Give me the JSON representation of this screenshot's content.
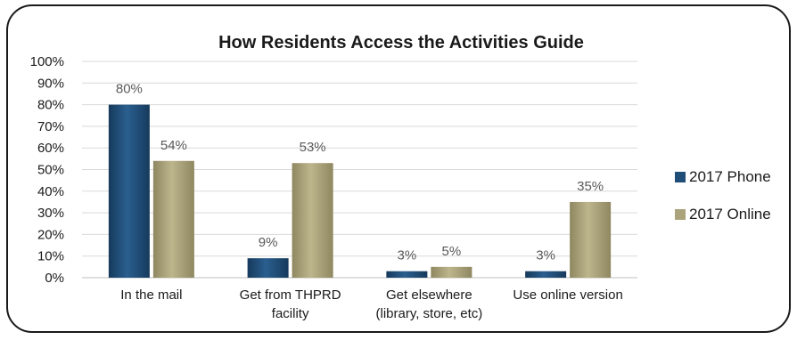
{
  "chart_data": {
    "type": "bar",
    "title": "How Residents Access the Activities Guide",
    "categories": [
      [
        "In the mail"
      ],
      [
        "Get from THPRD",
        "facility"
      ],
      [
        "Get elsewhere",
        "(library, store, etc)"
      ],
      [
        "Use online version"
      ]
    ],
    "series": [
      {
        "name": "2017 Phone",
        "values": [
          80,
          9,
          3,
          3
        ],
        "labels": [
          "80%",
          "9%",
          "3%",
          "3%"
        ],
        "color": "#1f4e79"
      },
      {
        "name": "2017 Online",
        "values": [
          54,
          53,
          5,
          35
        ],
        "labels": [
          "54%",
          "53%",
          "5%",
          "35%"
        ],
        "color": "#aba37b"
      }
    ],
    "ylim": [
      0,
      100
    ],
    "yticks": [
      "0%",
      "10%",
      "20%",
      "30%",
      "40%",
      "50%",
      "60%",
      "70%",
      "80%",
      "90%",
      "100%"
    ],
    "grid": true,
    "legend": "right"
  }
}
